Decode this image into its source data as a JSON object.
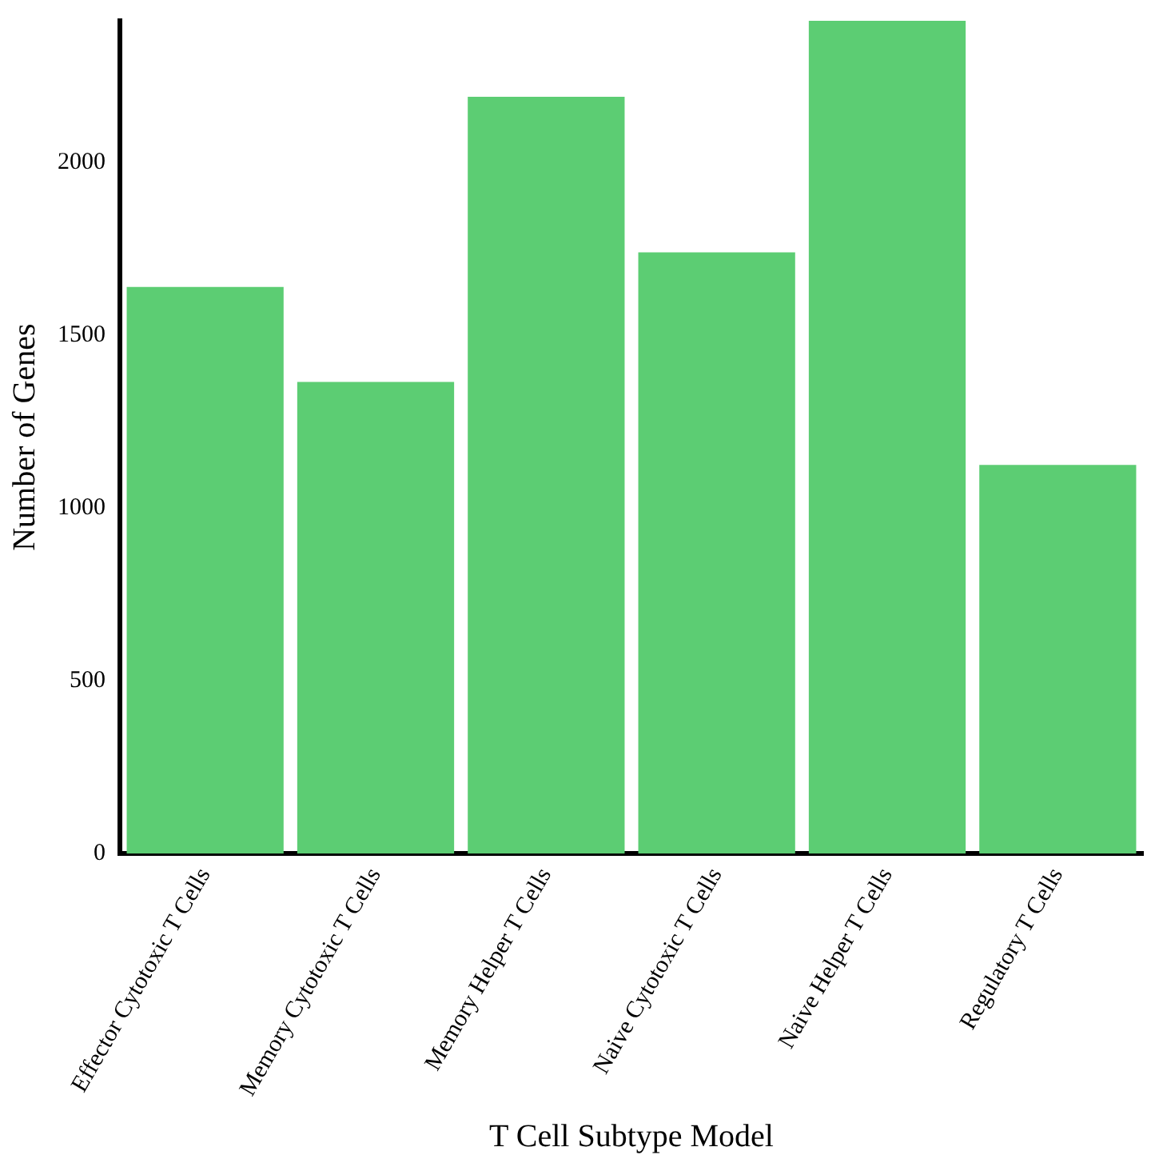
{
  "chart_data": {
    "type": "bar",
    "xlabel": "T Cell Subtype Model",
    "ylabel": "Number of Genes",
    "categories": [
      "Effector Cytotoxic T Cells",
      "Memory Cytotoxic T Cells",
      "Memory Helper T Cells",
      "Naive Cytotoxic T Cells",
      "Naive Helper T Cells",
      "Regulatory T Cells"
    ],
    "values": [
      1640,
      1365,
      2190,
      1740,
      2410,
      1125
    ],
    "color": "#5ccd73",
    "ylim": [
      0,
      2410
    ],
    "yticks": [
      0,
      500,
      1000,
      1500,
      2000
    ],
    "grid": false,
    "legend": false
  }
}
